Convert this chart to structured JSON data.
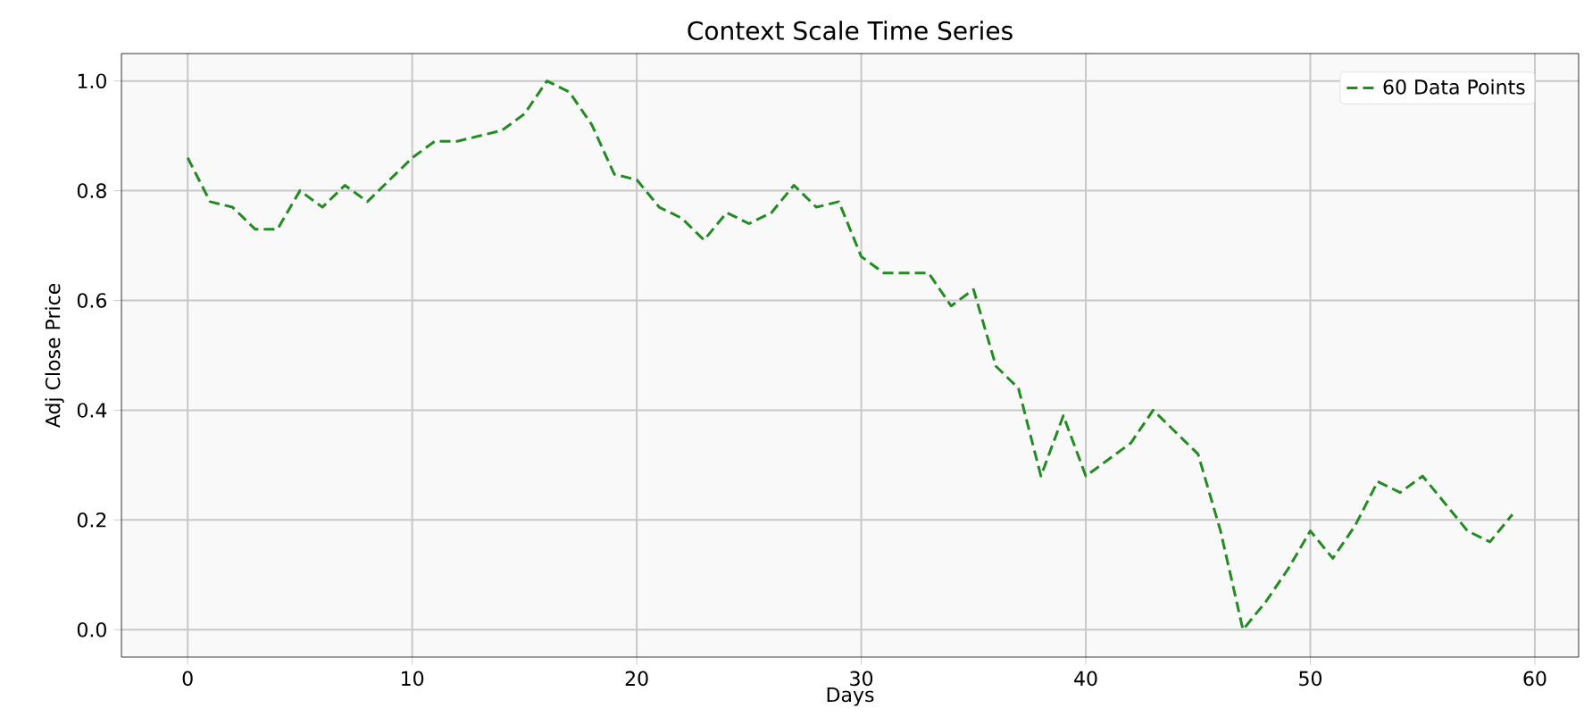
{
  "chart_data": {
    "type": "line",
    "title": "Context Scale Time Series",
    "xlabel": "Days",
    "ylabel": "Adj Close Price",
    "x": [
      0,
      1,
      2,
      3,
      4,
      5,
      6,
      7,
      8,
      9,
      10,
      11,
      12,
      13,
      14,
      15,
      16,
      17,
      18,
      19,
      20,
      21,
      22,
      23,
      24,
      25,
      26,
      27,
      28,
      29,
      30,
      31,
      32,
      33,
      34,
      35,
      36,
      37,
      38,
      39,
      40,
      41,
      42,
      43,
      44,
      45,
      46,
      47,
      48,
      49,
      50,
      51,
      52,
      53,
      54,
      55,
      56,
      57,
      58,
      59
    ],
    "series": [
      {
        "name": "60 Data Points",
        "color": "#228b22",
        "line_style": "dashed",
        "values": [
          0.86,
          0.78,
          0.77,
          0.73,
          0.73,
          0.8,
          0.77,
          0.81,
          0.78,
          0.82,
          0.86,
          0.89,
          0.89,
          0.9,
          0.91,
          0.94,
          1.0,
          0.98,
          0.92,
          0.83,
          0.82,
          0.77,
          0.75,
          0.71,
          0.76,
          0.74,
          0.76,
          0.81,
          0.77,
          0.78,
          0.68,
          0.65,
          0.65,
          0.65,
          0.59,
          0.62,
          0.48,
          0.44,
          0.28,
          0.39,
          0.28,
          0.31,
          0.34,
          0.4,
          0.36,
          0.32,
          0.18,
          0.0,
          0.05,
          0.11,
          0.18,
          0.13,
          0.19,
          0.27,
          0.25,
          0.28,
          0.23,
          0.18,
          0.16,
          0.21
        ]
      }
    ],
    "xlim": [
      -2.95,
      61.95
    ],
    "ylim": [
      -0.05,
      1.05
    ],
    "xticks": [
      0,
      10,
      20,
      30,
      40,
      50,
      60
    ],
    "yticks": [
      {
        "value": 0,
        "label": "0.0"
      },
      {
        "value": 0.2,
        "label": "0.2"
      },
      {
        "value": 0.4,
        "label": "0.4"
      },
      {
        "value": 0.6,
        "label": "0.6"
      },
      {
        "value": 0.8,
        "label": "0.8"
      },
      {
        "value": 1,
        "label": "1.0"
      }
    ],
    "grid": true,
    "legend": "top right",
    "marker": "none"
  }
}
